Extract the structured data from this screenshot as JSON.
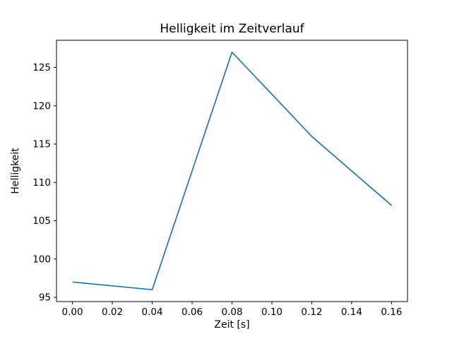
{
  "chart_data": {
    "type": "line",
    "title": "Helligkeit im Zeitverlauf",
    "xlabel": "Zeit [s]",
    "ylabel": "Helligkeit",
    "x": [
      0.0,
      0.04,
      0.08,
      0.12,
      0.16
    ],
    "y": [
      97,
      96,
      127,
      116,
      107
    ],
    "xlim": [
      -0.008,
      0.168
    ],
    "ylim": [
      94.45,
      128.55
    ],
    "xticks": [
      0.0,
      0.02,
      0.04,
      0.06,
      0.08,
      0.1,
      0.12,
      0.14,
      0.16
    ],
    "xtick_labels": [
      "0.00",
      "0.02",
      "0.04",
      "0.06",
      "0.08",
      "0.10",
      "0.12",
      "0.14",
      "0.16"
    ],
    "yticks": [
      95,
      100,
      105,
      110,
      115,
      120,
      125
    ],
    "ytick_labels": [
      "95",
      "100",
      "105",
      "110",
      "115",
      "120",
      "125"
    ],
    "line_color": "#1f77b4",
    "axis_color": "#000000",
    "background": "#ffffff",
    "grid": false,
    "legend": "none"
  }
}
